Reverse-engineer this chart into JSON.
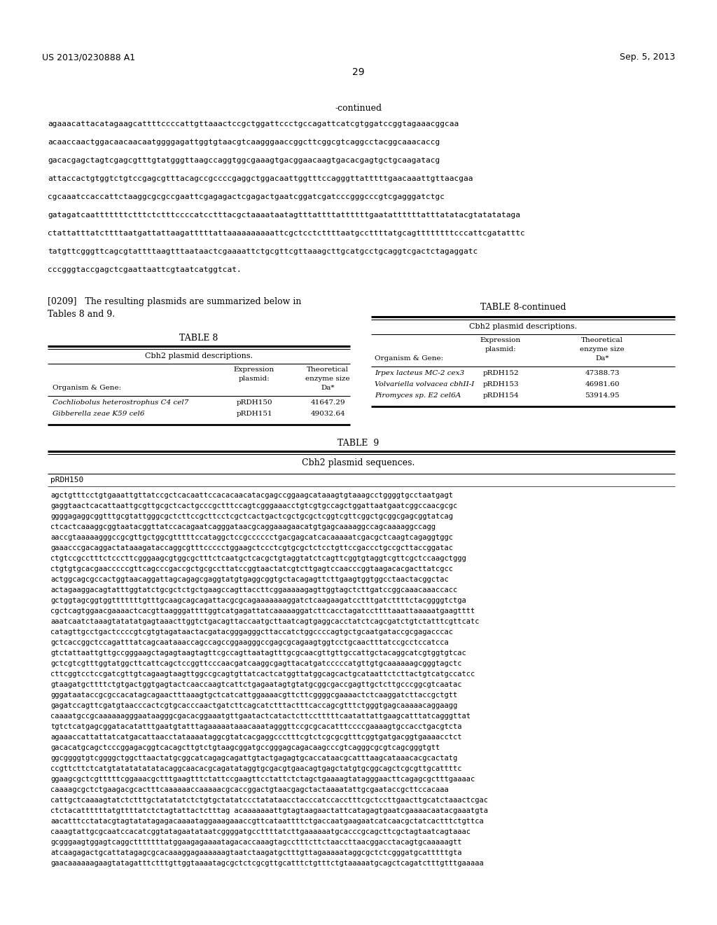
{
  "page_header_left": "US 2013/0230888 A1",
  "page_header_right": "Sep. 5, 2013",
  "page_number": "29",
  "continued_label": "-continued",
  "dna_sequences_top": [
    "agaaacattacatagaagcattttccccattgttaaactccgctggattccctgccagattcatcgtggatccggtagaaacggcaa",
    "acaaccaactggacaacaacaatggggagattggtgtaacgtcaagggaaccggcttcggcgtcaggcctacggcaaacaccg",
    "gacacgagctagtcgagcgtttgtatgggttaagccaggtggcgaaagtgacggaacaagtgacacgagtgctgcaagatacg",
    "attaccactgtggtctgtccgagcgtttacagccgccccgaggctggacaattggtttccagggttatttttgaacaaattgttaacgaa",
    "cgcaaatccaccattctaaggcgcgccgaattcgagagactcgagactgaatcggatcgatcccgggcccgtcgagggatctgc",
    "gatagatcaatttttttctttctctttccccatcctttacgctaaaataatagtttattttattttttgaatattttttatttatatacgtatatataga",
    "ctattatttatcttttaatgattattaagatttttattaaaaaaaaaattcgctcctcttttaatgccttttatgcagttttttttcccattcgatatttc",
    "tatgttcgggttcagcgtattttaagtttaataactcgaaaattctgcgttcgttaaagcttgcatgcctgcaggtcgactctagaggatc",
    "cccgggtaccgagctcgaattaattcgtaatcatggtcat."
  ],
  "paragraph_line1": "[0209]   The resulting plasmids are summarized below in",
  "paragraph_line2": "Tables 8 and 9.",
  "table8_title": "TABLE 8",
  "table8_subtitle": "Cbh2 plasmid descriptions.",
  "table8_rows": [
    [
      "Cochliobolus heterostrophus C4 cel7",
      "pRDH150",
      "41647.29"
    ],
    [
      "Gibberella zeae K59 cel6",
      "pRDH151",
      "49032.64"
    ]
  ],
  "table8c_title": "TABLE 8-continued",
  "table8c_subtitle": "Cbh2 plasmid descriptions.",
  "table8c_rows": [
    [
      "Irpex lacteus MC-2 cex3",
      "pRDH152",
      "47388.73"
    ],
    [
      "Volvariella volvacea cbhII-I",
      "pRDH153",
      "46981.60"
    ],
    [
      "Piromyces sp. E2 cel6A",
      "pRDH154",
      "53914.95"
    ]
  ],
  "table9_title": "TABLE  9",
  "table9_subtitle": "Cbh2 plasmid sequences.",
  "table9_section1": "pRDH150",
  "table9_seq": [
    "agctgtttcctgtgaaattgttatccgctcacaattccacacaacatacgagccggaagcataaagtgtaaagcctggggtgcctaatgagt",
    "gaggtaactcacattaattgcgttgcgctcactgcccgctttccagtcgggaaacctgtcgtgccagctggattaatgaatcggccaacgcgc",
    "ggggagaggcggtttgcgtattgggcgctcttccgcttcctcgctcactgactcgctgcgctcggtcgttcggctgcggcgagcggtatcag",
    "ctcactcaaaggcggtaatacggttatccacagaatcagggataacgcaggaaagaacatgtgagcaaaaggccagcaaaaggccagg",
    "aaccgtaaaaagggccgcgttgctggcgtttttccataggctccgcccccctgacgagcatcacaaaaatcgacgctcaagtcagaggtggc",
    "gaaacccgacaggactataaagataccaggcgtttccccctggaagctccctcgtgcgctctcctgttccgaccctgccgcttaccggatac",
    "ctgtccgcctttctcccttcgggaagcgtggcgctttctcaatgctcacgctgtaggtatctcagttcggtgtaggtcgttcgctccaagctggg",
    "ctgtgtgcacgaacccccgttcagcccgaccgctgcgccttatccggtaactatcgtcttgagtccaacccggtaagacacgacttatcgcc",
    "actggcagcgccactggtaacaggattagcagagcgaggtatgtgaggcggtgctacagagttcttgaagtggtggcctaactacggctac",
    "actagaaggacagtatttggtatctgcgctctgctgaagccagttaccttcggaaaaagagttggtagctcttgatccggcaaacaaaccacc",
    "gctggtagcggtggtttttttgtttgcaagcagcagattacgcgcagaaaaaaaggatctcaagaagatcctttgatcttttctacggggtctga",
    "cgctcagtggaacgaaaactcacgttaagggattttggtcatgagattatcaaaaaggatcttcacctagatccttttaaattaaaaatgaagtttt",
    "aaatcaatctaaagtatatatgagtaaacttggtctgacagttaccaatgcttaatcagtgaggcacctatctcagcgatctgtctatttcgttcatc",
    "catagttgcctgactccccgtcgtgtagataactacgatacgggagggcttaccatctggccccagtgctgcaatgataccgcgagacccac",
    "gctcaccggctccagatttatcagcaataaaccagccagccggaagggccgagcgcagaagtggtcctgcaactttatccgcctccatcca",
    "gtctattaattgttgccgggaagctagagtaagtagttcgccagttaatagtttgcgcaacgttgttgccattgctacaggcatcgtggtgtcac",
    "gctcgtcgtttggtatggcttcattcagctccggttcccaacgatcaaggcgagttacatgatcccccatgttgtgcaaaaaagcgggtagctc",
    "cttcggtcctccgatcgttgtcagaagtaagttggccgcagtgttatcactcatggttatggcagcactgcataattctcttactgtcatgccatcc",
    "gtaagatgcttttctgtgactggtgagtactcaaccaagtcattctgagaatagtgtatgcggcgaccgagttgctcttgcccggcgtcaatac",
    "gggataataccgcgccacatagcagaactttaaagtgctcatcattggaaaacgttcttcggggcgaaaactctcaaggatcttaccgctgtt",
    "gagatccagttcgatgtaacccactcgtgcacccaactgatcttcagcatctttactttcaccagcgtttctgggtgagcaaaaacaggaagg",
    "caaaatgccgcaaaaaagggaataagggcgacacggaaatgttgaatactcatactcttcctttttcaatattattgaagcatttatcagggttat",
    "tgtctcatgagcggatacatatttgaatgtatttagaaaaataaacaaatagggttccgcgcacatttccccgaaaagtgccacctgacgtcta",
    "agaaaccattattatcatgacattaacctataaaataggcgtatcacgaggccctttcgtctcgcgcgtttcggtgatgacggtgaaaacctct",
    "gacacatgcagctcccggagacggtcacagcttgtctgtaagcggatgccgggagcagacaagcccgtcagggcgcgtcagcgggtgtt",
    "ggcggggtgtcggggctggcttaactatgcggcatcagagcagattgtactgagagtgcaccataacgcatttaagcataaacacgcactatg",
    "ccgttcttctcatgtatatatatatacaggcaacacgcagatataggtgcgacgtgaacagtgagctatgtgcggcagctcgcgttgcattttc",
    "ggaagcgctcgtttttcggaaacgctttgaagtttctattccgaagttcctattctctagctgaaaagtatagggaacttcagagcgctttgaaaac",
    "caaaagcgctctgaagacgcactttcaaaaaaccaaaaacgcaccggactgtaacgagctactaaaatattgcgaataccgcttccacaaa",
    "cattgctcaaaagtatctctttgctatatatctctgtgctatatccctatataacctacccatccacctttcgctccttgaacttgcatctaaactcgac",
    "ctctacattttttatgttttatctctagtattactctttag acaaaaaaattgtagtaagaactattcatagagtgaatcgaaaacaatacgaaatgta",
    "aacatttcctatacgtagtatatagagacaaaataggaaagaaaccgttcataattttctgaccaatgaagaatcatcaacgctatcactttctgttca",
    "caaagtattgcgcaatccacatcggtatagaatataatcggggatgccttttatcttgaaaaaatgcacccgcagcttcgctagtaatcagtaaac",
    "gcgggaagtggagtcaggctttttttatggaagagaaaatagacaccaaagtagcctttcttctaaccttaacggacctacagtgcaaaaagtt",
    "atcaagagactgcattatagagcgcacaaaggagaaaaaagtaatctaagatgctttgttagaaaaataggcgctctcgggatgcatttttgta",
    "gaacaaaaaagaagtatagatttctttgttggtaaaatagcgctctcgcgttgcatttctgtttctgtaaaaatgcagctcagatctttgtttgaaaaa"
  ],
  "background_color": "#ffffff"
}
